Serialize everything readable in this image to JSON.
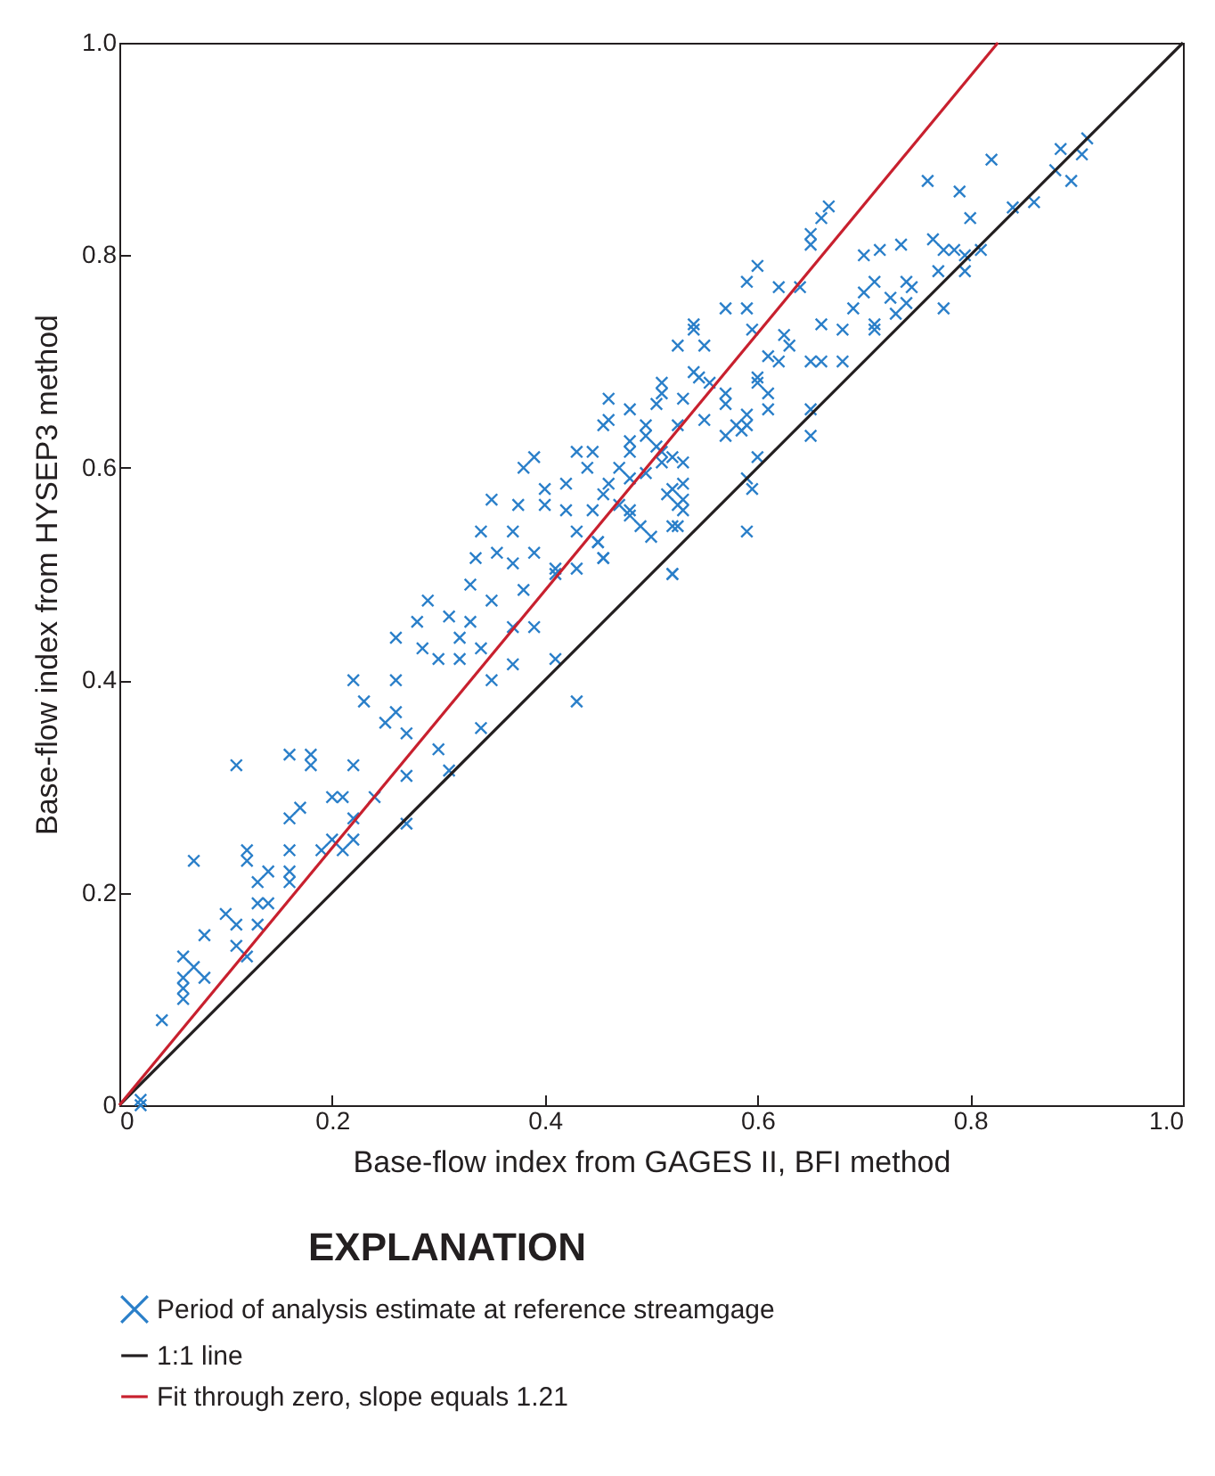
{
  "chart_data": {
    "type": "scatter",
    "xlabel": "Base-flow index from GAGES II, BFI method",
    "ylabel": "Base-flow index from HYSEP3 method",
    "legend_title": "EXPLANATION",
    "legend": "bottom",
    "xlim": [
      0,
      1
    ],
    "ylim": [
      0,
      1
    ],
    "xticks": [
      0,
      0.2,
      0.4,
      0.6,
      0.8,
      {
        "value": 1,
        "label": "1.0"
      }
    ],
    "yticks": [
      0,
      0.2,
      0.4,
      0.6,
      0.8,
      {
        "value": 1,
        "label": "1.0"
      }
    ],
    "grid": false,
    "series": [
      {
        "name": "Period of analysis estimate at reference streamgage",
        "marker": "cross",
        "color": "#2a7fc9",
        "x": [
          0.02,
          0.04,
          0.06,
          0.06,
          0.06,
          0.07,
          0.08,
          0.06,
          0.08,
          0.11,
          0.12,
          0.1,
          0.11,
          0.13,
          0.13,
          0.14,
          0.13,
          0.14,
          0.16,
          0.16,
          0.07,
          0.12,
          0.12,
          0.16,
          0.19,
          0.2,
          0.21,
          0.22,
          0.16,
          0.17,
          0.22,
          0.27,
          0.11,
          0.16,
          0.18,
          0.18,
          0.22,
          0.2,
          0.21,
          0.24,
          0.02,
          0.22,
          0.23,
          0.26,
          0.26,
          0.25,
          0.27,
          0.3,
          0.31,
          0.27,
          0.34,
          0.35,
          0.37,
          0.41,
          0.43,
          0.26,
          0.29,
          0.28,
          0.31,
          0.32,
          0.33,
          0.3,
          0.32,
          0.285,
          0.34,
          0.37,
          0.39,
          0.33,
          0.35,
          0.38,
          0.335,
          0.34,
          0.37,
          0.355,
          0.37,
          0.39,
          0.41,
          0.41,
          0.43,
          0.45,
          0.455,
          0.35,
          0.375,
          0.4,
          0.42,
          0.43,
          0.38,
          0.39,
          0.4,
          0.42,
          0.43,
          0.44,
          0.46,
          0.47,
          0.48,
          0.48,
          0.51,
          0.52,
          0.53,
          0.525,
          0.5,
          0.52,
          0.54,
          0.525,
          0.55,
          0.595,
          0.625,
          0.63,
          0.66,
          0.68,
          0.71,
          0.62,
          0.61,
          0.65,
          0.66,
          0.68,
          0.54,
          0.545,
          0.555,
          0.51,
          0.51,
          0.6,
          0.6,
          0.61,
          0.57,
          0.57,
          0.46,
          0.53,
          0.59,
          0.61,
          0.59,
          0.58,
          0.48,
          0.505,
          0.55,
          0.46,
          0.455,
          0.495,
          0.525,
          0.57,
          0.585,
          0.65,
          0.65,
          0.495,
          0.48,
          0.445,
          0.505,
          0.52,
          0.6,
          0.47,
          0.495,
          0.51,
          0.53,
          0.48,
          0.455,
          0.515,
          0.53,
          0.595,
          0.525,
          0.53,
          0.48,
          0.445,
          0.49,
          0.52,
          0.45,
          0.59,
          0.455,
          0.52,
          0.91,
          0.885,
          0.905,
          0.82,
          0.88,
          0.895,
          0.76,
          0.79,
          0.84,
          0.86,
          0.8,
          0.735,
          0.765,
          0.715,
          0.7,
          0.775,
          0.785,
          0.81,
          0.795,
          0.77,
          0.795,
          0.71,
          0.74,
          0.745,
          0.725,
          0.74,
          0.73,
          0.775,
          0.71,
          0.69,
          0.667,
          0.66,
          0.65,
          0.65,
          0.6,
          0.59,
          0.62,
          0.59,
          0.57,
          0.54,
          0.64,
          0.7,
          0.59
        ],
        "values": [
          0.0,
          0.08,
          0.1,
          0.11,
          0.12,
          0.13,
          0.12,
          0.14,
          0.16,
          0.15,
          0.14,
          0.18,
          0.17,
          0.17,
          0.19,
          0.19,
          0.21,
          0.22,
          0.21,
          0.22,
          0.23,
          0.23,
          0.24,
          0.24,
          0.24,
          0.25,
          0.24,
          0.25,
          0.27,
          0.28,
          0.27,
          0.265,
          0.32,
          0.33,
          0.33,
          0.32,
          0.32,
          0.29,
          0.29,
          0.29,
          0.005,
          0.4,
          0.38,
          0.4,
          0.37,
          0.36,
          0.35,
          0.335,
          0.315,
          0.31,
          0.355,
          0.4,
          0.415,
          0.42,
          0.38,
          0.44,
          0.475,
          0.455,
          0.46,
          0.44,
          0.455,
          0.42,
          0.42,
          0.43,
          0.43,
          0.45,
          0.45,
          0.49,
          0.475,
          0.485,
          0.515,
          0.54,
          0.54,
          0.52,
          0.51,
          0.52,
          0.505,
          0.5,
          0.505,
          0.53,
          0.515,
          0.57,
          0.565,
          0.565,
          0.56,
          0.54,
          0.6,
          0.61,
          0.58,
          0.585,
          0.615,
          0.6,
          0.585,
          0.565,
          0.555,
          0.615,
          0.615,
          0.58,
          0.57,
          0.545,
          0.535,
          0.5,
          0.73,
          0.715,
          0.715,
          0.73,
          0.725,
          0.715,
          0.735,
          0.73,
          0.73,
          0.7,
          0.705,
          0.7,
          0.7,
          0.7,
          0.69,
          0.685,
          0.68,
          0.68,
          0.67,
          0.685,
          0.68,
          0.67,
          0.67,
          0.66,
          0.665,
          0.665,
          0.65,
          0.655,
          0.64,
          0.64,
          0.655,
          0.66,
          0.645,
          0.645,
          0.64,
          0.64,
          0.64,
          0.63,
          0.635,
          0.655,
          0.63,
          0.63,
          0.625,
          0.615,
          0.62,
          0.61,
          0.61,
          0.6,
          0.595,
          0.605,
          0.605,
          0.59,
          0.575,
          0.575,
          0.585,
          0.58,
          0.565,
          0.56,
          0.56,
          0.56,
          0.545,
          0.545,
          0.53,
          0.54,
          0.515,
          0.5,
          0.91,
          0.9,
          0.895,
          0.89,
          0.88,
          0.87,
          0.87,
          0.86,
          0.845,
          0.85,
          0.835,
          0.81,
          0.815,
          0.805,
          0.8,
          0.805,
          0.805,
          0.805,
          0.8,
          0.785,
          0.785,
          0.775,
          0.775,
          0.77,
          0.76,
          0.755,
          0.745,
          0.75,
          0.735,
          0.75,
          0.846,
          0.835,
          0.82,
          0.81,
          0.79,
          0.775,
          0.77,
          0.75,
          0.75,
          0.735,
          0.77,
          0.765,
          0.59
        ]
      },
      {
        "name": "1:1 line",
        "type": "line",
        "color": "#231f20",
        "x": [
          0,
          1
        ],
        "values": [
          0,
          1
        ]
      },
      {
        "name": "Fit through zero, slope equals 1.21",
        "type": "line",
        "color": "#c8202e",
        "x": [
          0,
          0.826
        ],
        "values": [
          0,
          1
        ]
      }
    ]
  }
}
